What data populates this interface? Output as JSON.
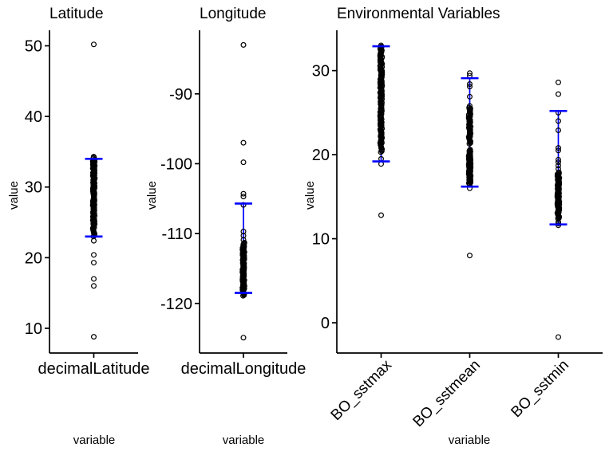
{
  "figure": {
    "background": "#ffffff",
    "axis_color": "#000000",
    "point_color": "#000000",
    "errorbar_color": "#0000ff",
    "text_color": "#000000"
  },
  "chart_data": [
    {
      "type": "scatter",
      "title": "Latitude",
      "xlabel": "variable",
      "ylabel": "value",
      "categories": [
        "decimalLatitude"
      ],
      "x_tick_rotation": 0,
      "yticks": [
        10,
        20,
        30,
        40,
        50
      ],
      "ylim": [
        6.5,
        52.2
      ],
      "grid": false,
      "legend": false,
      "series": [
        {
          "category": "decimalLatitude",
          "outliers": [
            50.2,
            22.4,
            20.4,
            19.3,
            17.0,
            16.0,
            8.8
          ],
          "clusters": [
            {
              "from": 23.0,
              "to": 34.3,
              "count": 90
            },
            {
              "from": 24.8,
              "to": 33.8,
              "count": 55
            }
          ],
          "errorbar": {
            "lower": 23.0,
            "upper": 34.0
          }
        }
      ]
    },
    {
      "type": "scatter",
      "title": "Longitude",
      "xlabel": "variable",
      "ylabel": "value",
      "categories": [
        "decimalLongitude"
      ],
      "x_tick_rotation": 0,
      "yticks": [
        -120,
        -110,
        -100,
        -90
      ],
      "ylim": [
        -127.1,
        -80.9
      ],
      "grid": false,
      "legend": false,
      "series": [
        {
          "category": "decimalLongitude",
          "outliers": [
            -83.0,
            -97.0,
            -99.8,
            -104.3,
            -104.7,
            -105.9,
            -109.7,
            -110.3,
            -110.9,
            -124.9
          ],
          "clusters": [
            {
              "from": -118.9,
              "to": -111.3,
              "count": 80
            },
            {
              "from": -118.3,
              "to": -112.3,
              "count": 45
            }
          ],
          "errorbar": {
            "lower": -118.5,
            "upper": -105.7
          }
        }
      ]
    },
    {
      "type": "scatter",
      "title": "Environmental Variables",
      "xlabel": "variable",
      "ylabel": "value",
      "categories": [
        "BO_sstmax",
        "BO_sstmean",
        "BO_sstmin"
      ],
      "x_tick_rotation": 45,
      "yticks": [
        0,
        10,
        20,
        30
      ],
      "ylim": [
        -3.6,
        34.8
      ],
      "grid": false,
      "legend": false,
      "series": [
        {
          "category": "BO_sstmax",
          "outliers": [
            19.5,
            18.9,
            12.8
          ],
          "clusters": [
            {
              "from": 20.3,
              "to": 33.0,
              "count": 105
            },
            {
              "from": 21.2,
              "to": 32.6,
              "count": 60
            }
          ],
          "errorbar": {
            "lower": 19.2,
            "upper": 32.9
          }
        },
        {
          "category": "BO_sstmean",
          "outliers": [
            29.7,
            29.4,
            28.4,
            28.1,
            26.9,
            25.8,
            16.0,
            8.0
          ],
          "clusters": [
            {
              "from": 21.3,
              "to": 25.6,
              "count": 50
            },
            {
              "from": 16.4,
              "to": 20.6,
              "count": 60
            },
            {
              "from": 17.0,
              "to": 20.0,
              "count": 30
            }
          ],
          "errorbar": {
            "lower": 16.2,
            "upper": 29.1
          }
        },
        {
          "category": "BO_sstmin",
          "outliers": [
            28.6,
            27.2,
            25.0,
            24.0,
            22.9,
            20.8,
            20.5,
            19.4,
            19.1,
            18.7,
            18.3,
            12.0,
            11.8,
            11.6,
            -1.7
          ],
          "clusters": [
            {
              "from": 12.4,
              "to": 17.9,
              "count": 75
            },
            {
              "from": 13.2,
              "to": 17.4,
              "count": 40
            }
          ],
          "errorbar": {
            "lower": 11.7,
            "upper": 25.2
          }
        }
      ]
    }
  ]
}
